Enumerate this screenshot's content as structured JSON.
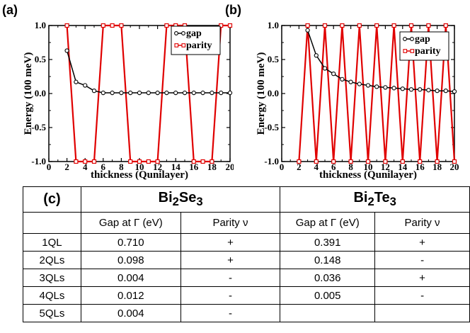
{
  "labels": {
    "a": "(a)",
    "b": "(b)",
    "c": "(c)"
  },
  "chart_data": [
    {
      "type": "line",
      "panel": "(a)",
      "xlabel": "thickness (Qunilayer)",
      "ylabel": "Energy (100 meV)",
      "xlim": [
        0,
        20
      ],
      "ylim": [
        -1.0,
        1.0
      ],
      "xticks": [
        "0",
        "2",
        "4",
        "6",
        "8",
        "10",
        "12",
        "14",
        "16",
        "18",
        "20"
      ],
      "yticks": [
        "1.0",
        "0.5",
        "0.0",
        "-0.5",
        "-1.0"
      ],
      "legend_position": "top-right",
      "series": [
        {
          "name": "gap",
          "color": "#000000",
          "x": [
            2,
            3,
            4,
            5,
            6,
            7,
            8,
            9,
            10,
            11,
            12,
            13,
            14,
            15,
            16,
            17,
            18,
            19,
            20
          ],
          "y": [
            0.63,
            0.17,
            0.12,
            0.04,
            0.01,
            0.01,
            0.01,
            0.01,
            0.01,
            0.01,
            0.01,
            0.01,
            0.01,
            0.01,
            0.01,
            0.01,
            0.01,
            0.01,
            0.01
          ]
        },
        {
          "name": "parity",
          "color": "#e00000",
          "x": [
            2,
            3,
            4,
            5,
            6,
            7,
            8,
            9,
            10,
            11,
            12,
            13,
            14,
            15,
            16,
            17,
            18,
            19,
            20
          ],
          "y": [
            1,
            -1,
            -1,
            -1,
            1,
            1,
            1,
            -1,
            -1,
            -1,
            -1,
            1,
            1,
            1,
            -1,
            -1,
            -1,
            1,
            1
          ]
        }
      ]
    },
    {
      "type": "line",
      "panel": "(b)",
      "xlabel": "thickness (Qunilayer)",
      "ylabel": "Energy (100 meV)",
      "xlim": [
        0,
        20
      ],
      "ylim": [
        -1.0,
        1.0
      ],
      "xticks": [
        "0",
        "2",
        "4",
        "6",
        "8",
        "10",
        "12",
        "14",
        "16",
        "18",
        "20"
      ],
      "yticks": [
        "1.0",
        "0.5",
        "0.0",
        "-0.5",
        "-1.0"
      ],
      "legend_position": "top-right",
      "series": [
        {
          "name": "gap",
          "color": "#000000",
          "x": [
            3,
            4,
            5,
            6,
            7,
            8,
            9,
            10,
            11,
            12,
            13,
            14,
            15,
            16,
            17,
            18,
            19,
            20
          ],
          "y": [
            0.93,
            0.56,
            0.37,
            0.29,
            0.21,
            0.17,
            0.14,
            0.12,
            0.1,
            0.09,
            0.08,
            0.07,
            0.06,
            0.06,
            0.05,
            0.04,
            0.04,
            0.03
          ]
        },
        {
          "name": "parity",
          "color": "#e00000",
          "x": [
            2,
            3,
            4,
            5,
            6,
            7,
            8,
            9,
            10,
            11,
            12,
            13,
            14,
            15,
            16,
            17,
            18,
            19,
            20
          ],
          "y": [
            -1,
            1,
            -1,
            1,
            -1,
            1,
            -1,
            1,
            -1,
            1,
            -1,
            1,
            -1,
            1,
            -1,
            1,
            -1,
            1,
            -1
          ]
        }
      ]
    }
  ],
  "table": {
    "label": "(c)",
    "materials": [
      {
        "main": "Bi",
        "sub1": "2",
        "mid": "Se",
        "sub2": "3"
      },
      {
        "main": "Bi",
        "sub1": "2",
        "mid": "Te",
        "sub2": "3"
      }
    ],
    "col_headers": [
      "Gap at Γ (eV)",
      "Parity ν",
      "Gap at Γ (eV)",
      "Parity ν"
    ],
    "rows": [
      {
        "ql": "1QL",
        "cells": [
          "0.710",
          "+",
          "0.391",
          "+"
        ]
      },
      {
        "ql": "2QLs",
        "cells": [
          "0.098",
          "+",
          "0.148",
          "-"
        ]
      },
      {
        "ql": "3QLs",
        "cells": [
          "0.004",
          "-",
          "0.036",
          "+"
        ]
      },
      {
        "ql": "4QLs",
        "cells": [
          "0.012",
          "-",
          "0.005",
          "-"
        ]
      },
      {
        "ql": "5QLs",
        "cells": [
          "0.004",
          "-",
          "",
          ""
        ]
      }
    ]
  }
}
